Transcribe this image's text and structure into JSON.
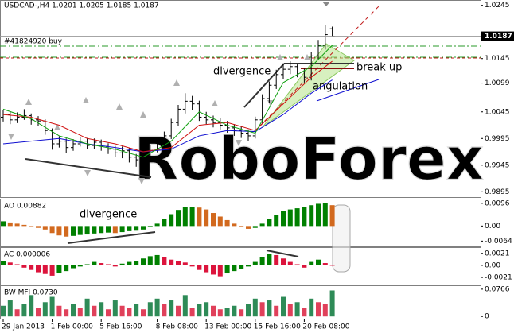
{
  "chart_data": [
    {
      "type": "ohlc",
      "title": "USDCAD-,H4  1.0201 1.0205 1.0185 1.0187",
      "order_label": "#41824920 buy",
      "watermark": "RoboForex",
      "annotations": [
        "divergence",
        "break up",
        "angulation"
      ],
      "color": "#000000",
      "categories": [
        "29 Jan 2013",
        null,
        null,
        null,
        null,
        null,
        null,
        "1 Feb 00:00",
        null,
        null,
        null,
        null,
        null,
        null,
        "5 Feb 16:00",
        null,
        null,
        null,
        null,
        null,
        null,
        null,
        "8 Feb 08:00",
        null,
        null,
        null,
        null,
        null,
        null,
        "13 Feb 00:00",
        null,
        null,
        null,
        null,
        null,
        null,
        "15 Feb 16:00",
        null,
        null,
        null,
        null,
        null,
        null,
        "20 Feb 08:00",
        null,
        null,
        null,
        null
      ],
      "open": [
        1.0035,
        1.004,
        1.003,
        1.0035,
        1.0038,
        1.003,
        1.0028,
        1.001,
        0.9985,
        0.999,
        0.9978,
        0.9985,
        0.999,
        0.9982,
        0.9988,
        0.998,
        0.9975,
        0.9968,
        0.9972,
        0.996,
        0.9955,
        0.9965,
        0.9975,
        0.9985,
        1.0,
        1.0025,
        1.005,
        1.0065,
        1.006,
        1.0035,
        1.003,
        1.0025,
        1.002,
        1.0015,
        1.001,
        1.0005,
        1.0,
        1.003,
        1.007,
        1.0095,
        1.0115,
        1.0125,
        1.013,
        1.012,
        1.011,
        1.015,
        1.017,
        1.0201
      ],
      "high": [
        1.0048,
        1.0046,
        1.0044,
        1.005,
        1.0042,
        1.0037,
        1.0031,
        1.0014,
        0.9999,
        0.9995,
        0.9994,
        0.9998,
        0.9996,
        0.9995,
        0.9993,
        0.9986,
        0.9981,
        0.998,
        0.9977,
        0.9966,
        0.9971,
        0.9983,
        0.9992,
        1.0008,
        1.0032,
        1.0058,
        1.008,
        1.0075,
        1.0066,
        1.0045,
        1.0038,
        1.0034,
        1.0028,
        1.0022,
        1.0018,
        1.0012,
        1.0036,
        1.0078,
        1.0102,
        1.0124,
        1.0136,
        1.014,
        1.0134,
        1.0126,
        1.0158,
        1.018,
        1.0208,
        1.0205
      ],
      "low": [
        1.0027,
        1.0022,
        1.0024,
        1.003,
        1.0021,
        1.0018,
        1.0002,
        0.9974,
        0.9978,
        0.9968,
        0.9972,
        0.998,
        0.9975,
        0.9976,
        0.9972,
        0.9966,
        0.996,
        0.9958,
        0.995,
        0.9942,
        0.9948,
        0.9958,
        0.9969,
        0.998,
        0.9994,
        1.0018,
        1.0042,
        1.0048,
        1.0028,
        1.0022,
        1.0016,
        1.0012,
        1.0006,
        1.0,
        0.9996,
        0.999,
        0.9995,
        1.0024,
        1.0062,
        1.0088,
        1.0106,
        1.0116,
        1.011,
        1.01,
        1.0104,
        1.0142,
        1.0162,
        1.0185
      ],
      "close": [
        1.004,
        1.003,
        1.0035,
        1.0038,
        1.003,
        1.0028,
        1.001,
        0.9985,
        0.999,
        0.9978,
        0.9985,
        0.999,
        0.9982,
        0.9988,
        0.998,
        0.9975,
        0.9968,
        0.9972,
        0.996,
        0.9955,
        0.9965,
        0.9975,
        0.9985,
        1.0,
        1.0025,
        1.005,
        1.0065,
        1.006,
        1.0035,
        1.003,
        1.0025,
        1.002,
        1.0015,
        1.001,
        1.0005,
        1.0,
        1.003,
        1.007,
        1.0095,
        1.0115,
        1.0125,
        1.013,
        1.012,
        1.011,
        1.015,
        1.017,
        1.019,
        1.0187
      ],
      "series": [
        {
          "color": "#1010d0",
          "x": [
            0,
            4,
            8,
            12,
            16,
            20,
            24,
            28,
            32,
            36,
            40,
            44,
            47
          ],
          "values": [
            0.9985,
            0.999,
            0.9995,
            0.9985,
            0.9978,
            0.997,
            0.9975,
            1.0,
            1.001,
            1.0008,
            1.004,
            1.008,
            1.0105
          ]
        },
        {
          "color": "#d01010",
          "x": [
            0,
            4,
            8,
            12,
            16,
            20,
            24,
            28,
            32,
            36,
            40,
            44,
            47
          ],
          "values": [
            1.004,
            1.0035,
            1.002,
            0.9995,
            0.9985,
            0.997,
            0.9978,
            1.002,
            1.0025,
            1.001,
            1.006,
            1.011,
            1.014
          ]
        },
        {
          "color": "#10a010",
          "x": [
            0,
            4,
            8,
            12,
            16,
            20,
            24,
            28,
            32,
            36,
            40,
            44,
            47
          ],
          "values": [
            1.005,
            1.0032,
            1.0,
            0.9985,
            0.9975,
            0.996,
            0.999,
            1.0045,
            1.002,
            1.0005,
            1.01,
            1.013,
            1.017
          ]
        }
      ],
      "current_price": 1.0187,
      "ylim": [
        0.9888,
        1.0252
      ],
      "yticks": [
        1.0245,
        1.0145,
        1.0099,
        1.0045,
        0.9995,
        0.9945,
        0.9895
      ]
    },
    {
      "type": "bar",
      "title": "AO 0.00882",
      "annotations": [
        "divergence"
      ],
      "up_color": "#008000",
      "down_color": "#d2691e",
      "values": [
        0.002,
        0.0015,
        0.001,
        0.0005,
        0.0,
        -0.0008,
        -0.0015,
        -0.003,
        -0.004,
        -0.0045,
        -0.0042,
        -0.0038,
        -0.0036,
        -0.0032,
        -0.003,
        -0.0028,
        -0.003,
        -0.0026,
        -0.0022,
        -0.002,
        -0.0015,
        -0.0005,
        0.001,
        0.003,
        0.005,
        0.0068,
        0.008,
        0.0082,
        0.0078,
        0.007,
        0.0055,
        0.004,
        0.0025,
        0.001,
        -0.0005,
        -0.0012,
        -0.0008,
        0.001,
        0.003,
        0.0048,
        0.0062,
        0.007,
        0.0075,
        0.008,
        0.0088,
        0.0094,
        0.0096,
        0.00882
      ],
      "ylim": [
        -0.0083,
        0.0109
      ],
      "yticks": [
        0.0096,
        {
          "value": 0,
          "label": "0.00"
        },
        -0.0064
      ]
    },
    {
      "type": "bar",
      "title": "AC 0.000006",
      "up_color": "#008000",
      "down_color": "#dc143c",
      "values": [
        0.0008,
        0.0005,
        0.0002,
        -0.0004,
        -0.0008,
        -0.0012,
        -0.0015,
        -0.0018,
        -0.0014,
        -0.001,
        -0.0005,
        -0.0002,
        0.0002,
        0.0006,
        0.0004,
        0.0002,
        -0.0002,
        0.0003,
        0.0006,
        0.0008,
        0.0012,
        0.0016,
        0.0018,
        0.0015,
        0.001,
        0.0008,
        0.0005,
        -0.0002,
        -0.0008,
        -0.0012,
        -0.0016,
        -0.0019,
        -0.0014,
        -0.001,
        -0.0006,
        -0.0002,
        0.0006,
        0.0014,
        0.002,
        0.0018,
        0.0012,
        0.0006,
        0.0002,
        -0.0004,
        0.0006,
        0.001,
        0.0004,
        6e-06
      ],
      "ylim": [
        -0.0032,
        0.0029
      ],
      "yticks": [
        0.0021,
        {
          "value": 0,
          "label": "0.00"
        },
        -0.0021
      ]
    },
    {
      "type": "bar",
      "title": "BW MFI 0.0730",
      "up_color": "#2e8b57",
      "down_color": "#e0405a",
      "values": [
        0.03,
        0.045,
        0.02,
        0.035,
        0.06,
        0.025,
        0.04,
        0.055,
        0.03,
        0.02,
        0.035,
        0.025,
        0.05,
        0.03,
        0.04,
        0.02,
        0.045,
        0.03,
        0.025,
        0.035,
        0.02,
        0.04,
        0.05,
        0.035,
        0.045,
        0.03,
        0.06,
        0.025,
        0.035,
        0.04,
        0.03,
        0.02,
        0.025,
        0.03,
        0.02,
        0.035,
        0.05,
        0.04,
        0.045,
        0.03,
        0.055,
        0.035,
        0.04,
        0.025,
        0.05,
        0.04,
        0.035,
        0.073
      ],
      "ylim": [
        -0.004,
        0.083
      ],
      "yticks": [
        0.0766,
        0
      ]
    }
  ]
}
